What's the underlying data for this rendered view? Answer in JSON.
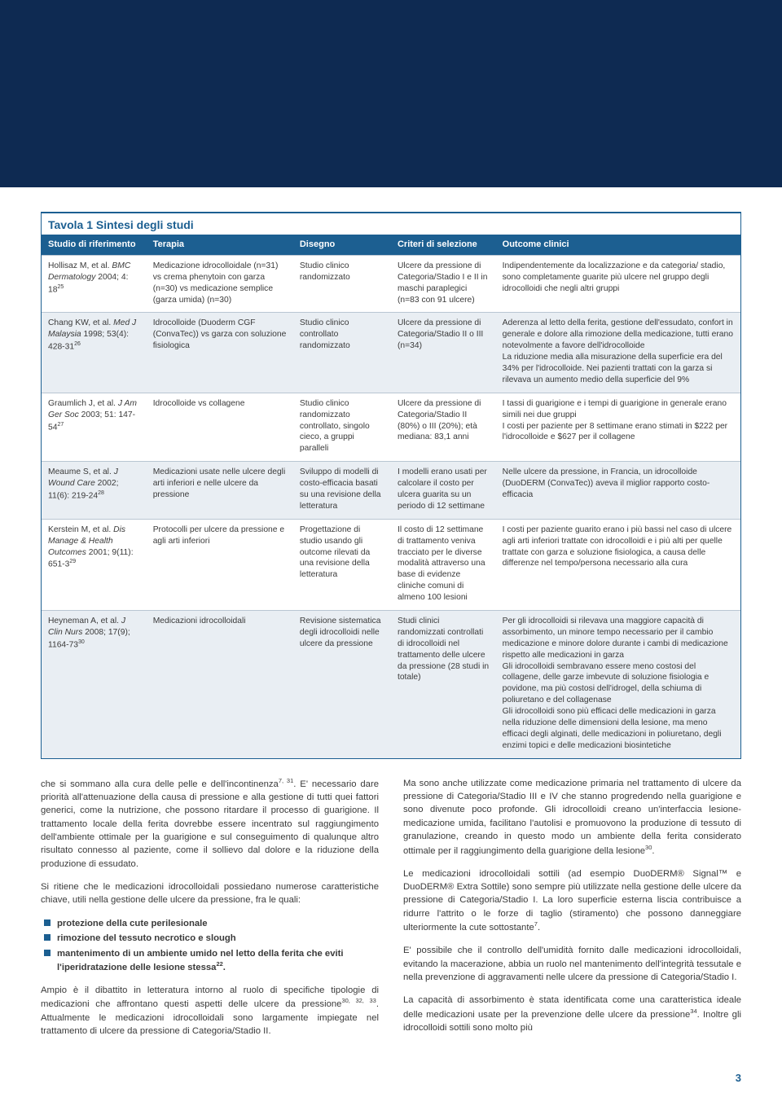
{
  "colors": {
    "header_bg": "#0e2a52",
    "accent": "#1c5f91",
    "row_alt_bg": "#e9eef3",
    "text": "#3a3a3a",
    "border": "#b9c6d2"
  },
  "table": {
    "title_prefix": "Tavola 1",
    "title_rest": "Sintesi degli studi",
    "headers": {
      "study": "Studio di riferimento",
      "therapy": "Terapia",
      "design": "Disegno",
      "criteria": "Criteri di selezione",
      "outcome": "Outcome clinici"
    },
    "rows": [
      {
        "study_author": "Hollisaz M, et al.",
        "study_journal": "BMC Dermatology",
        "study_cite": " 2004; 4: 18",
        "study_ref": "25",
        "therapy": "Medicazione idrocolloidale (n=31) vs crema phenytoin con garza (n=30) vs medicazione semplice (garza umida) (n=30)",
        "design": "Studio clinico randomizzato",
        "criteria": "Ulcere da pressione di Categoria/Stadio I e II in maschi paraplegici (n=83 con 91 ulcere)",
        "outcome": "Indipendentemente da localizzazione e da categoria/ stadio, sono completamente guarite più ulcere nel gruppo degli idrocolloidi che negli altri gruppi"
      },
      {
        "study_author": "Chang KW, et al.",
        "study_journal": "Med J Malaysia",
        "study_cite": " 1998; 53(4): 428-31",
        "study_ref": "26",
        "therapy": "Idrocolloide (Duoderm CGF (ConvaTec)) vs garza con soluzione fisiologica",
        "design": "Studio clinico controllato randomizzato",
        "criteria": "Ulcere da pressione di Categoria/Stadio II o III (n=34)",
        "outcome": "Aderenza al letto della ferita, gestione dell'essudato, confort in generale e dolore alla rimozione della medicazione, tutti erano notevolmente a favore dell'idrocolloide\nLa riduzione media alla misurazione della superficie era del 34% per l'idrocolloide. Nei pazienti trattati con la garza si rilevava un aumento medio della superficie del 9%"
      },
      {
        "study_author": "Graumlich J, et al.",
        "study_journal": "J Am Ger Soc",
        "study_cite": " 2003; 51: 147-54",
        "study_ref": "27",
        "therapy": "Idrocolloide vs collagene",
        "design": "Studio clinico randomizzato controllato, singolo cieco, a gruppi paralleli",
        "criteria": "Ulcere da pressione di Categoria/Stadio II (80%) o III (20%); età mediana: 83,1 anni",
        "outcome": "I tassi di guarigione e i tempi di guarigione in generale erano simili nei due gruppi\nI costi per paziente per 8 settimane erano stimati in $222 per l'idrocolloide e $627 per il collagene"
      },
      {
        "study_author": "Meaume S, et al.",
        "study_journal": "J Wound Care",
        "study_cite": " 2002; 11(6): 219-24",
        "study_ref": "28",
        "therapy": "Medicazioni usate nelle ulcere degli arti inferiori e nelle ulcere da pressione",
        "design": "Sviluppo di modelli di costo-efficacia basati su una revisione della letteratura",
        "criteria": "I modelli erano usati per calcolare il costo per ulcera guarita su un periodo di 12 settimane",
        "outcome": "Nelle ulcere da pressione, in Francia, un idrocolloide (DuoDERM (ConvaTec)) aveva il miglior rapporto costo-efficacia"
      },
      {
        "study_author": "Kerstein M, et al.",
        "study_journal": "Dis Manage & Health Outcomes",
        "study_cite": " 2001; 9(11): 651-3",
        "study_ref": "29",
        "therapy": "Protocolli per ulcere da pressione e agli arti inferiori",
        "design": "Progettazione di studio usando gli outcome rilevati da una revisione della letteratura",
        "criteria": "Il costo di 12 settimane di trattamento veniva tracciato per le diverse modalità attraverso una base di evidenze cliniche comuni di almeno 100 lesioni",
        "outcome": "I costi per paziente guarito erano i più bassi nel caso di ulcere agli arti inferiori trattate con idrocolloidi e i più alti per quelle trattate con garza e soluzione fisiologica, a causa delle differenze nel tempo/persona necessario alla cura"
      },
      {
        "study_author": "Heyneman A, et al.",
        "study_journal": "J Clin Nurs",
        "study_cite": " 2008; 17(9); 1164-73",
        "study_ref": "30",
        "therapy": "Medicazioni idrocolloidali",
        "design": "Revisione sistematica degli idrocolloidi nelle ulcere da pressione",
        "criteria": "Studi clinici randomizzati controllati di idrocolloidi nel trattamento delle ulcere da pressione (28 studi in totale)",
        "outcome": "Per gli idrocolloidi si rilevava una maggiore capacità di assorbimento, un minore tempo necessario per il cambio medicazione e minore dolore durante i cambi di medicazione rispetto alle medicazioni in garza\nGli idrocolloidi sembravano essere meno costosi del collagene, delle garze imbevute di soluzione fisiologia e povidone, ma più costosi dell'idrogel, della schiuma di poliuretano e del collagenase\nGli idrocolloidi sono più efficaci delle medicazioni in garza nella riduzione delle dimensioni della lesione, ma meno efficaci degli alginati, delle medicazioni in poliuretano, degli enzimi topici e delle medicazioni biosintetiche"
      }
    ]
  },
  "body": {
    "left": {
      "p1a": "che si sommano alla cura delle pelle e dell'incontinenza",
      "p1a_ref": "7, 31",
      "p1b": ". E' necessario dare priorità all'attenuazione della causa di pressione e alla gestione di tutti quei fattori generici, come la nutrizione, che possono ritardare il processo di guarigione. Il trattamento locale della ferita dovrebbe essere incentrato sul raggiungimento dell'ambiente ottimale per la guarigione e sul conseguimento di qualunque altro risultato connesso al paziente, come il sollievo dal dolore e la riduzione della produzione di essudato.",
      "p2": "Si ritiene che le medicazioni idrocolloidali possiedano numerose caratteristiche chiave, utili nella gestione delle ulcere da pressione, fra le quali:",
      "bullets": [
        "protezione della cute perilesionale",
        "rimozione del tessuto necrotico e slough"
      ],
      "bullet3a": "mantenimento di un ambiente umido nel letto della ferita che eviti l'iperidratazione delle lesione stessa",
      "bullet3_ref": "22",
      "p3a": "Ampio è il dibattito in letteratura intorno al ruolo di specifiche tipologie di medicazioni che affrontano questi aspetti delle ulcere da pressione",
      "p3_ref": "30, 32, 33",
      "p3b": ". Attualmente le medicazioni idrocolloidali sono largamente impiegate nel trattamento di ulcere da pressione di Categoria/Stadio II."
    },
    "right": {
      "p1a": "Ma sono anche utilizzate come medicazione primaria nel trattamento di ulcere da pressione di Categoria/Stadio III e IV che stanno progredendo nella guarigione e sono divenute poco profonde. Gli idrocolloidi creano un'interfaccia lesione-medicazione umida, facilitano l'autolisi e promuovono la produzione di tessuto di granulazione, creando in questo modo un ambiente della ferita considerato ottimale per il raggiungimento della guarigione della lesione",
      "p1_ref": "30",
      "p2a": "Le medicazioni idrocolloidali sottili (ad esempio DuoDERM® Signal™ e DuoDERM® Extra Sottile) sono sempre più utilizzate nella gestione delle ulcere da pressione di Categoria/Stadio I. La loro superficie esterna liscia contribuisce a ridurre l'attrito o le forze di taglio (stiramento) che possono danneggiare ulteriormente la cute sottostante",
      "p2_ref": "7",
      "p3": "E' possibile che il controllo dell'umidità fornito dalle medicazioni idrocolloidali, evitando la macerazione, abbia un ruolo nel mantenimento dell'integrità tessutale e nella prevenzione di aggravamenti nelle ulcere da pressione di Categoria/Stadio I.",
      "p4a": "La capacità di assorbimento è stata identificata come una caratteristica ideale delle medicazioni usate per la prevenzione delle ulcere da pressione",
      "p4_ref": "34",
      "p4b": ". Inoltre gli idrocolloidi sottili sono molto più"
    }
  },
  "page_number": "3"
}
